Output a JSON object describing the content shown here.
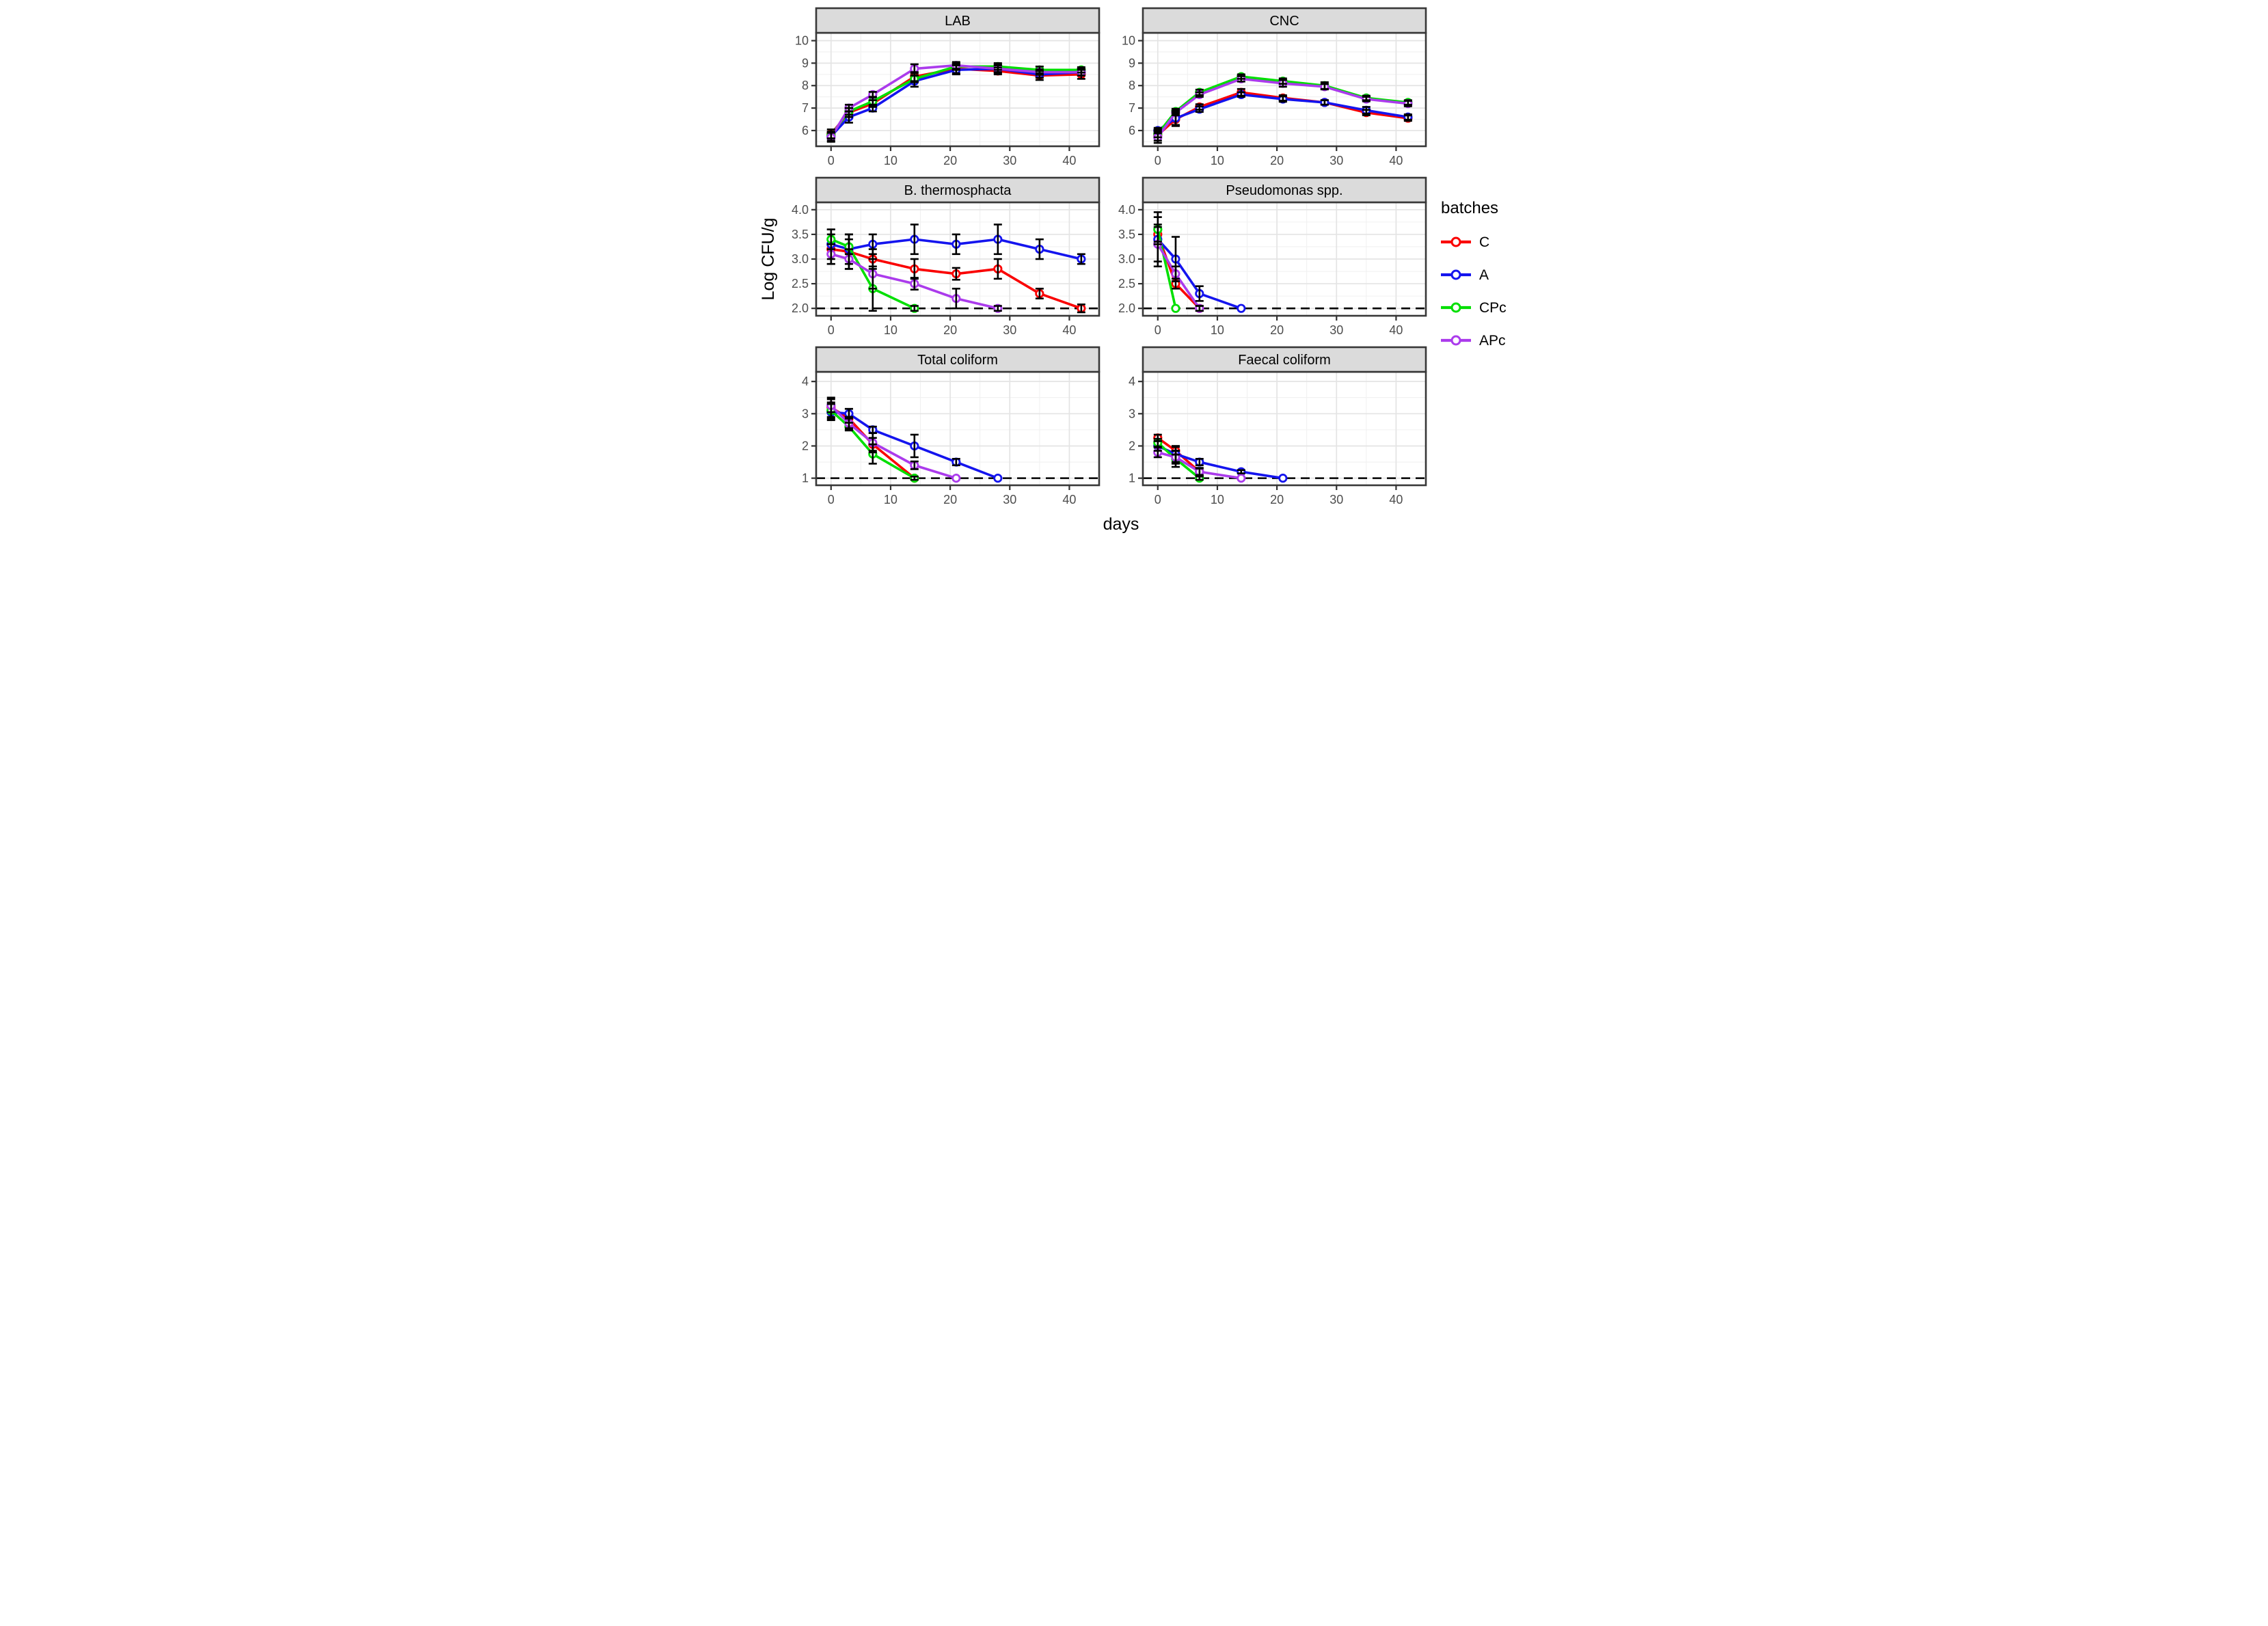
{
  "figure": {
    "y_axis_title": "Log CFU/g",
    "x_axis_title": "days",
    "colors": {
      "C": "#FA0000",
      "A": "#1414EE",
      "CPc": "#00DF00",
      "APc": "#AB3BEC"
    },
    "style_colors": {
      "grid_major": "#E4E4E4",
      "grid_minor": "#F1F1F1",
      "strip_fill": "#DBDBDB",
      "panel_border": "#383838",
      "tick_label": "#4D4D4D",
      "limit_line": "#000000"
    },
    "legend": {
      "title": "batches",
      "position": "right-middle",
      "entries": [
        {
          "label": "C",
          "color_key": "C"
        },
        {
          "label": "A",
          "color_key": "A"
        },
        {
          "label": "CPc",
          "color_key": "CPc"
        },
        {
          "label": "APc",
          "color_key": "APc"
        }
      ]
    }
  },
  "chart_data": [
    {
      "type": "line",
      "title": "LAB",
      "row": 0,
      "col": 0,
      "xlim": [
        -2.5,
        45
      ],
      "xticks": [
        0,
        10,
        20,
        30,
        40
      ],
      "xminor": [
        5,
        15,
        25,
        35
      ],
      "ylim": [
        5.3,
        10.35
      ],
      "yticks": [
        6,
        7,
        8,
        9,
        10
      ],
      "ytick_labels": [
        "6",
        "7",
        "8",
        "9",
        "10"
      ],
      "yminor": [
        5.5,
        6.5,
        7.5,
        8.5,
        9.5
      ],
      "limit_line": null,
      "series": [
        {
          "name": "C",
          "x": [
            0,
            3,
            7,
            14,
            21,
            28,
            35,
            42
          ],
          "y": [
            5.85,
            6.8,
            7.2,
            8.4,
            8.75,
            8.65,
            8.45,
            8.5
          ],
          "err": [
            0.2,
            0.2,
            0.15,
            0.2,
            0.2,
            0.15,
            0.2,
            0.2
          ]
        },
        {
          "name": "A",
          "x": [
            0,
            3,
            7,
            14,
            21,
            28,
            35,
            42
          ],
          "y": [
            5.75,
            6.6,
            7.0,
            8.2,
            8.7,
            8.75,
            8.5,
            8.6
          ],
          "err": [
            0.2,
            0.25,
            0.15,
            0.25,
            0.2,
            0.2,
            0.15,
            0.15
          ]
        },
        {
          "name": "CPc",
          "x": [
            0,
            3,
            7,
            14,
            21,
            28,
            35,
            42
          ],
          "y": [
            5.8,
            6.85,
            7.3,
            8.3,
            8.85,
            8.85,
            8.7,
            8.7
          ],
          "err": [
            0.15,
            0.15,
            0.2,
            0.15,
            0.15,
            0.15,
            0.15,
            0.12
          ]
        },
        {
          "name": "APc",
          "x": [
            0,
            3,
            7,
            14,
            21,
            28,
            35,
            42
          ],
          "y": [
            5.7,
            7.0,
            7.6,
            8.75,
            8.9,
            8.75,
            8.6,
            8.6
          ],
          "err": [
            0.2,
            0.15,
            0.12,
            0.2,
            0.15,
            0.15,
            0.12,
            0.15
          ]
        }
      ]
    },
    {
      "type": "line",
      "title": "CNC",
      "row": 0,
      "col": 1,
      "xlim": [
        -2.5,
        45
      ],
      "xticks": [
        0,
        10,
        20,
        30,
        40
      ],
      "xminor": [
        5,
        15,
        25,
        35
      ],
      "ylim": [
        5.3,
        10.35
      ],
      "yticks": [
        6,
        7,
        8,
        9,
        10
      ],
      "ytick_labels": [
        "6",
        "7",
        "8",
        "9",
        "10"
      ],
      "yminor": [
        5.5,
        6.5,
        7.5,
        8.5,
        9.5
      ],
      "limit_line": null,
      "series": [
        {
          "name": "C",
          "x": [
            0,
            3,
            7,
            14,
            21,
            28,
            35,
            42
          ],
          "y": [
            5.8,
            6.5,
            7.05,
            7.7,
            7.45,
            7.25,
            6.8,
            6.55
          ],
          "err": [
            0.25,
            0.3,
            0.12,
            0.15,
            0.12,
            0.1,
            0.12,
            0.12
          ]
        },
        {
          "name": "A",
          "x": [
            0,
            3,
            7,
            14,
            21,
            28,
            35,
            42
          ],
          "y": [
            6.0,
            6.55,
            6.95,
            7.6,
            7.4,
            7.25,
            6.9,
            6.6
          ],
          "err": [
            0.12,
            0.3,
            0.12,
            0.1,
            0.12,
            0.1,
            0.15,
            0.12
          ]
        },
        {
          "name": "CPc",
          "x": [
            0,
            3,
            7,
            14,
            21,
            28,
            35,
            42
          ],
          "y": [
            5.85,
            6.85,
            7.7,
            8.4,
            8.2,
            8.0,
            7.45,
            7.25
          ],
          "err": [
            0.15,
            0.12,
            0.12,
            0.1,
            0.12,
            0.15,
            0.1,
            0.1
          ]
        },
        {
          "name": "APc",
          "x": [
            0,
            3,
            7,
            14,
            21,
            28,
            35,
            42
          ],
          "y": [
            5.7,
            6.8,
            7.6,
            8.3,
            8.1,
            7.95,
            7.4,
            7.2
          ],
          "err": [
            0.25,
            0.12,
            0.1,
            0.12,
            0.15,
            0.12,
            0.1,
            0.12
          ]
        }
      ]
    },
    {
      "type": "line",
      "title": "B. thermosphacta",
      "row": 1,
      "col": 0,
      "xlim": [
        -2.5,
        45
      ],
      "xticks": [
        0,
        10,
        20,
        30,
        40
      ],
      "xminor": [
        5,
        15,
        25,
        35
      ],
      "ylim": [
        1.85,
        4.15
      ],
      "yticks": [
        2.0,
        2.5,
        3.0,
        3.5,
        4.0
      ],
      "ytick_labels": [
        "2.0",
        "2.5",
        "3.0",
        "3.5",
        "4.0"
      ],
      "yminor": [
        2.25,
        2.75,
        3.25,
        3.75
      ],
      "limit_line": 2.0,
      "series": [
        {
          "name": "C",
          "x": [
            0,
            3,
            7,
            14,
            21,
            28,
            35,
            42
          ],
          "y": [
            3.2,
            3.15,
            3.0,
            2.8,
            2.7,
            2.8,
            2.3,
            2.0
          ],
          "err": [
            0.3,
            0.35,
            0.2,
            0.2,
            0.12,
            0.2,
            0.1,
            0.08
          ]
        },
        {
          "name": "A",
          "x": [
            0,
            3,
            7,
            14,
            21,
            28,
            35,
            42
          ],
          "y": [
            3.3,
            3.2,
            3.3,
            3.4,
            3.3,
            3.4,
            3.2,
            3.0
          ],
          "err": [
            0.3,
            0.3,
            0.2,
            0.3,
            0.2,
            0.3,
            0.2,
            0.1
          ]
        },
        {
          "name": "CPc",
          "x": [
            0,
            3,
            7,
            14
          ],
          "y": [
            3.4,
            3.25,
            2.4,
            2.0
          ],
          "err": [
            0.2,
            0.15,
            0.45,
            0.05
          ]
        },
        {
          "name": "APc",
          "x": [
            0,
            3,
            7,
            14,
            21,
            28
          ],
          "y": [
            3.1,
            3.0,
            2.7,
            2.5,
            2.2,
            2.0
          ],
          "err": [
            0.2,
            0.2,
            0.3,
            0.12,
            0.2,
            0.05
          ]
        }
      ]
    },
    {
      "type": "line",
      "title": "Pseudomonas spp.",
      "row": 1,
      "col": 1,
      "xlim": [
        -2.5,
        45
      ],
      "xticks": [
        0,
        10,
        20,
        30,
        40
      ],
      "xminor": [
        5,
        15,
        25,
        35
      ],
      "ylim": [
        1.85,
        4.15
      ],
      "yticks": [
        2.0,
        2.5,
        3.0,
        3.5,
        4.0
      ],
      "ytick_labels": [
        "2.0",
        "2.5",
        "3.0",
        "3.5",
        "4.0"
      ],
      "yminor": [
        2.25,
        2.75,
        3.25,
        3.75
      ],
      "limit_line": 2.0,
      "series": [
        {
          "name": "C",
          "x": [
            0,
            3,
            7
          ],
          "y": [
            3.5,
            2.5,
            2.0
          ],
          "err": [
            0.2,
            0.1,
            0.05
          ]
        },
        {
          "name": "A",
          "x": [
            0,
            3,
            7,
            14
          ],
          "y": [
            3.4,
            3.0,
            2.3,
            2.0
          ],
          "err": [
            0.55,
            0.45,
            0.15,
            0.04
          ]
        },
        {
          "name": "CPc",
          "x": [
            0,
            3
          ],
          "y": [
            3.6,
            2.0
          ],
          "err": [
            0.25,
            0.04
          ]
        },
        {
          "name": "APc",
          "x": [
            0,
            3,
            7
          ],
          "y": [
            3.3,
            2.7,
            2.0
          ],
          "err": [
            0.35,
            0.15,
            0.05
          ]
        }
      ]
    },
    {
      "type": "line",
      "title": "Total coliform",
      "row": 2,
      "col": 0,
      "xlim": [
        -2.5,
        45
      ],
      "xticks": [
        0,
        10,
        20,
        30,
        40
      ],
      "xminor": [
        5,
        15,
        25,
        35
      ],
      "ylim": [
        0.78,
        4.3
      ],
      "yticks": [
        1,
        2,
        3,
        4
      ],
      "ytick_labels": [
        "1",
        "2",
        "3",
        "4"
      ],
      "yminor": [
        1.5,
        2.5,
        3.5
      ],
      "limit_line": 1.0,
      "series": [
        {
          "name": "C",
          "x": [
            0,
            3,
            7,
            14
          ],
          "y": [
            3.2,
            2.85,
            2.05,
            1.0
          ],
          "err": [
            0.3,
            0.3,
            0.2,
            0.04
          ]
        },
        {
          "name": "A",
          "x": [
            0,
            3,
            7,
            14,
            21,
            28
          ],
          "y": [
            3.05,
            3.0,
            2.5,
            2.0,
            1.5,
            1.0
          ],
          "err": [
            0.25,
            0.15,
            0.1,
            0.35,
            0.1,
            0.04
          ]
        },
        {
          "name": "CPc",
          "x": [
            0,
            3,
            7,
            14
          ],
          "y": [
            3.1,
            2.6,
            1.75,
            1.0
          ],
          "err": [
            0.25,
            0.12,
            0.3,
            0.05
          ]
        },
        {
          "name": "APc",
          "x": [
            0,
            3,
            7,
            14,
            21
          ],
          "y": [
            3.25,
            2.7,
            2.1,
            1.4,
            1.0
          ],
          "err": [
            0.2,
            0.2,
            0.3,
            0.12,
            0.04
          ]
        }
      ]
    },
    {
      "type": "line",
      "title": "Faecal coliform",
      "row": 2,
      "col": 1,
      "xlim": [
        -2.5,
        45
      ],
      "xticks": [
        0,
        10,
        20,
        30,
        40
      ],
      "xminor": [
        5,
        15,
        25,
        35
      ],
      "ylim": [
        0.78,
        4.3
      ],
      "yticks": [
        1,
        2,
        3,
        4
      ],
      "ytick_labels": [
        "1",
        "2",
        "3",
        "4"
      ],
      "yminor": [
        1.5,
        2.5,
        3.5
      ],
      "limit_line": 1.0,
      "series": [
        {
          "name": "C",
          "x": [
            0,
            3,
            7
          ],
          "y": [
            2.25,
            1.85,
            1.2
          ],
          "err": [
            0.1,
            0.12,
            0.1
          ]
        },
        {
          "name": "A",
          "x": [
            0,
            3,
            7,
            14,
            21
          ],
          "y": [
            2.0,
            1.75,
            1.5,
            1.2,
            1.0
          ],
          "err": [
            0.15,
            0.25,
            0.1,
            0.05,
            0.03
          ]
        },
        {
          "name": "CPc",
          "x": [
            0,
            3,
            7
          ],
          "y": [
            2.1,
            1.6,
            1.0
          ],
          "err": [
            0.12,
            0.25,
            0.05
          ]
        },
        {
          "name": "APc",
          "x": [
            0,
            3,
            7,
            14
          ],
          "y": [
            1.8,
            1.65,
            1.2,
            1.0
          ],
          "err": [
            0.15,
            0.2,
            0.12,
            0.03
          ]
        }
      ]
    }
  ]
}
